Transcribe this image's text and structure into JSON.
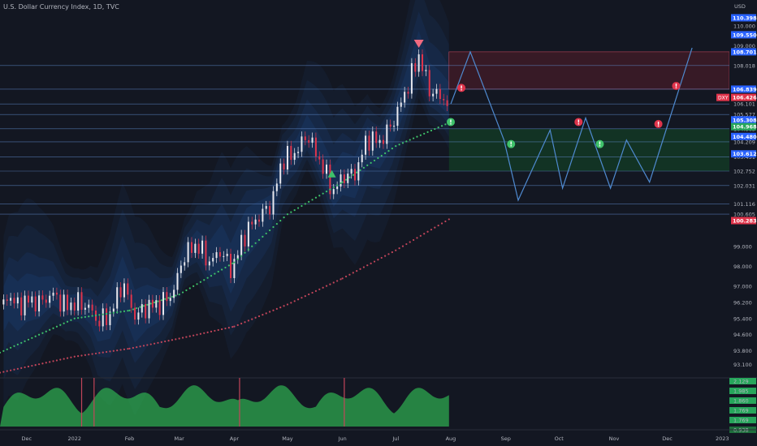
{
  "header": {
    "title": "U.S. Dollar Currency Index, 1D, TVC",
    "currency": "USD"
  },
  "colors": {
    "background": "#131722",
    "band": "#1c4a8a",
    "up": "#e8e8ee",
    "down": "#e0344b",
    "ema_fast": "#3fc26a",
    "ema_slow": "#c2455a",
    "level_line": "#5e87c8",
    "red_zone": "#7a1f2e",
    "green_zone": "#134a27",
    "forecast": "#4f8ad0",
    "osc_green": "#2ea84f"
  },
  "chart_data": {
    "type": "line",
    "title": "U.S. Dollar Currency Index, 1D, TVC",
    "ylim": [
      92.6,
      110.8
    ],
    "y_ticks": [
      "110.000",
      "109.000",
      "108.018",
      "106.101",
      "105.577",
      "104.863",
      "104.209",
      "103.451",
      "102.752",
      "102.031",
      "101.116",
      "100.605",
      "99.000",
      "98.000",
      "97.000",
      "96.200",
      "95.400",
      "94.600",
      "93.800",
      "93.100"
    ],
    "x_ticks": [
      "Dec",
      "2022",
      "Feb",
      "Mar",
      "Apr",
      "May",
      "Jun",
      "Jul",
      "Aug",
      "Sep",
      "Oct",
      "Nov",
      "Dec",
      "2023"
    ],
    "x_range": [
      "2021-11-20",
      "2023-01-05"
    ],
    "price_close": [
      [
        "2021-11-22",
        96.1
      ],
      [
        "2021-11-25",
        96.6
      ],
      [
        "2021-11-30",
        96.0
      ],
      [
        "2021-12-05",
        96.3
      ],
      [
        "2021-12-12",
        96.2
      ],
      [
        "2021-12-20",
        96.6
      ],
      [
        "2021-12-27",
        96.0
      ],
      [
        "2022-01-03",
        96.2
      ],
      [
        "2022-01-10",
        95.9
      ],
      [
        "2022-01-14",
        95.2
      ],
      [
        "2022-01-21",
        95.6
      ],
      [
        "2022-01-28",
        97.2
      ],
      [
        "2022-02-04",
        95.5
      ],
      [
        "2022-02-11",
        96.0
      ],
      [
        "2022-02-18",
        96.1
      ],
      [
        "2022-02-25",
        96.6
      ],
      [
        "2022-03-04",
        98.6
      ],
      [
        "2022-03-11",
        99.1
      ],
      [
        "2022-03-18",
        98.2
      ],
      [
        "2022-03-25",
        98.8
      ],
      [
        "2022-03-30",
        97.8
      ],
      [
        "2022-04-08",
        99.8
      ],
      [
        "2022-04-14",
        100.4
      ],
      [
        "2022-04-22",
        101.1
      ],
      [
        "2022-04-28",
        103.3
      ],
      [
        "2022-05-06",
        103.7
      ],
      [
        "2022-05-12",
        104.6
      ],
      [
        "2022-05-20",
        103.1
      ],
      [
        "2022-05-27",
        101.7
      ],
      [
        "2022-06-01",
        102.5
      ],
      [
        "2022-06-08",
        102.6
      ],
      [
        "2022-06-15",
        104.4
      ],
      [
        "2022-06-22",
        104.2
      ],
      [
        "2022-06-29",
        105.1
      ],
      [
        "2022-07-06",
        106.6
      ],
      [
        "2022-07-14",
        108.5
      ],
      [
        "2022-07-20",
        106.8
      ],
      [
        "2022-07-27",
        106.4
      ],
      [
        "2022-07-31",
        106.1
      ]
    ],
    "ema_fast": [
      [
        "2021-11-20",
        93.7
      ],
      [
        "2022-01-01",
        95.4
      ],
      [
        "2022-02-01",
        95.8
      ],
      [
        "2022-03-01",
        96.6
      ],
      [
        "2022-04-01",
        98.2
      ],
      [
        "2022-05-01",
        100.6
      ],
      [
        "2022-06-01",
        102.2
      ],
      [
        "2022-07-01",
        104.0
      ],
      [
        "2022-08-01",
        105.2
      ]
    ],
    "ema_slow": [
      [
        "2021-11-20",
        92.7
      ],
      [
        "2022-01-01",
        93.5
      ],
      [
        "2022-02-01",
        93.9
      ],
      [
        "2022-03-01",
        94.4
      ],
      [
        "2022-04-01",
        95.0
      ],
      [
        "2022-05-01",
        96.1
      ],
      [
        "2022-06-01",
        97.4
      ],
      [
        "2022-07-01",
        98.8
      ],
      [
        "2022-08-01",
        100.4
      ]
    ],
    "forecast": [
      [
        "2022-08-01",
        106.1
      ],
      [
        "2022-08-12",
        108.7
      ],
      [
        "2022-08-31",
        104.3
      ],
      [
        "2022-09-08",
        101.3
      ],
      [
        "2022-09-26",
        104.8
      ],
      [
        "2022-10-03",
        101.9
      ],
      [
        "2022-10-16",
        105.4
      ],
      [
        "2022-10-30",
        101.9
      ],
      [
        "2022-11-08",
        104.3
      ],
      [
        "2022-11-21",
        102.2
      ],
      [
        "2022-12-15",
        108.9
      ]
    ],
    "support_resistance": [
      108.018,
      106.839,
      106.101,
      105.577,
      104.863,
      104.209,
      103.451,
      102.752,
      102.031,
      101.116,
      100.605
    ],
    "red_zone": [
      106.839,
      108.701
    ],
    "green_zone": [
      102.752,
      104.863
    ],
    "right_tags": [
      {
        "label": "110.398",
        "value": 110.398,
        "color": "#2962ff"
      },
      {
        "label": "109.550",
        "value": 109.55,
        "color": "#2962ff"
      },
      {
        "label": "108.701",
        "value": 108.701,
        "color": "#2962ff"
      },
      {
        "label": "106.839",
        "value": 106.839,
        "color": "#2962ff"
      },
      {
        "label": "106.426",
        "value": 106.426,
        "color": "#e0344b"
      },
      {
        "label": "105.308",
        "value": 105.308,
        "color": "#2962ff"
      },
      {
        "label": "104.968",
        "value": 104.968,
        "color": "#26a65b"
      },
      {
        "label": "104.480",
        "value": 104.48,
        "color": "#2962ff"
      },
      {
        "label": "103.612",
        "value": 103.612,
        "color": "#2962ff"
      },
      {
        "label": "100.283",
        "value": 100.283,
        "color": "#e0344b"
      }
    ],
    "price_tag": "DXY",
    "markers": [
      {
        "type": "triangle-down",
        "x": "2022-07-14",
        "y": 109.1,
        "color": "#f06a80"
      },
      {
        "type": "triangle-up",
        "x": "2022-05-26",
        "y": 102.6,
        "color": "#3fc26a"
      },
      {
        "type": "alert",
        "x": "2022-08-07",
        "y": 106.9,
        "color": "#e0344b"
      },
      {
        "type": "alert",
        "x": "2022-08-01",
        "y": 105.2,
        "color": "#3fc26a"
      },
      {
        "type": "alert",
        "x": "2022-09-04",
        "y": 104.1,
        "color": "#3fc26a"
      },
      {
        "type": "alert",
        "x": "2022-10-12",
        "y": 105.2,
        "color": "#e0344b"
      },
      {
        "type": "alert",
        "x": "2022-10-24",
        "y": 104.1,
        "color": "#3fc26a"
      },
      {
        "type": "alert",
        "x": "2022-11-26",
        "y": 105.1,
        "color": "#e0344b"
      },
      {
        "type": "alert",
        "x": "2022-12-06",
        "y": 107.0,
        "color": "#e0344b"
      }
    ],
    "oscillator": {
      "ticks": [
        "2.129",
        "1.985",
        "1.860",
        "1.769",
        "1.769",
        "0.938"
      ]
    }
  }
}
